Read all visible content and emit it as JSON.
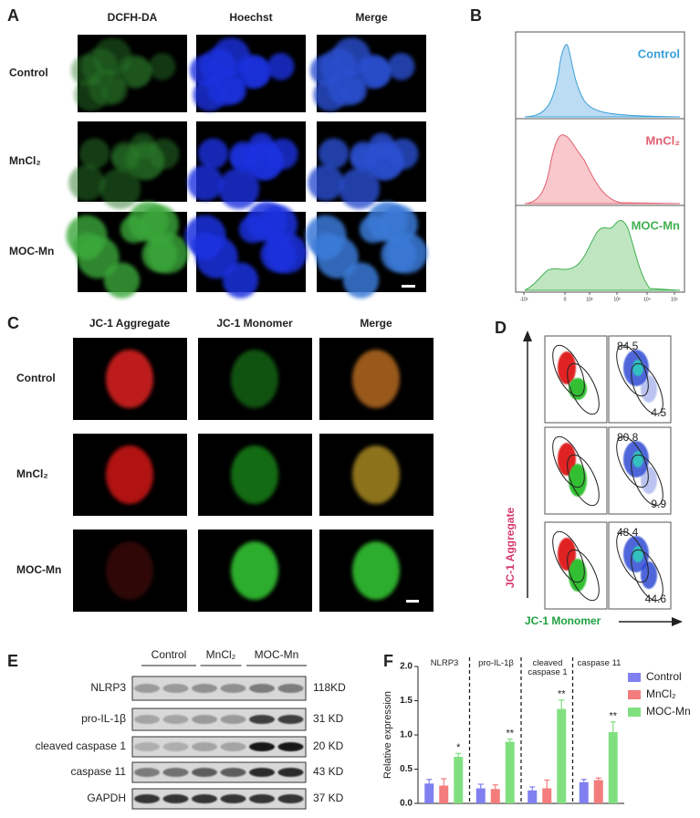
{
  "panel_a": {
    "letter": "A",
    "columns": [
      "DCFH-DA",
      "Hoechst",
      "Merge"
    ],
    "rows": [
      "Control",
      "MnCl₂",
      "MOC-Mn"
    ]
  },
  "panel_b": {
    "letter": "B",
    "labels": [
      "Control",
      "MnCl₂",
      "MOC-Mn"
    ],
    "axis_ticks": [
      "-10²",
      "0",
      "10²",
      "10³",
      "10⁴",
      "10⁵"
    ]
  },
  "panel_c": {
    "letter": "C",
    "columns": [
      "JC-1 Aggregate",
      "JC-1 Monomer",
      "Merge"
    ],
    "rows": [
      "Control",
      "MnCl₂",
      "MOC-Mn"
    ]
  },
  "panel_d": {
    "letter": "D",
    "y_label": "JC-1 Aggregate",
    "x_label": "JC-1 Monomer",
    "rows": [
      {
        "upper": 84.5,
        "lower": 4.5
      },
      {
        "upper": 80.8,
        "lower": 9.9
      },
      {
        "upper": 48.4,
        "lower": 44.6
      }
    ]
  },
  "panel_e": {
    "letter": "E",
    "columns": [
      "Control",
      "MnCl₂",
      "MOC-Mn"
    ],
    "rows": [
      {
        "protein": "NLRP3",
        "size": "118KD"
      },
      {
        "protein": "pro-IL-1β",
        "size": "31 KD"
      },
      {
        "protein": "cleaved caspase 1",
        "size": "20 KD"
      },
      {
        "protein": "caspase 11",
        "size": "43 KD"
      },
      {
        "protein": "GAPDH",
        "size": "37 KD"
      }
    ]
  },
  "chart_data": {
    "type": "bar",
    "letter": "F",
    "y_label": "Relative expression",
    "categories": [
      "NLRP3",
      "pro-IL-1β",
      "cleaved caspase 1",
      "caspase 11"
    ],
    "series": [
      {
        "name": "Control",
        "color": "#8080f0",
        "values": [
          0.29,
          0.22,
          0.19,
          0.31
        ],
        "errors": [
          0.06,
          0.06,
          0.05,
          0.04
        ]
      },
      {
        "name": "MnCl₂",
        "color": "#f47c7c",
        "values": [
          0.26,
          0.21,
          0.22,
          0.34
        ],
        "errors": [
          0.1,
          0.06,
          0.12,
          0.03
        ]
      },
      {
        "name": "MOC-Mn",
        "color": "#80e080",
        "values": [
          0.68,
          0.9,
          1.38,
          1.04
        ],
        "errors": [
          0.05,
          0.04,
          0.13,
          0.15
        ]
      }
    ],
    "significance": [
      "*",
      "**",
      "**",
      "**"
    ],
    "ylim": [
      0,
      2
    ],
    "yticks": [
      {
        "value": 0,
        "label": "0.0"
      },
      0.5,
      {
        "value": 1,
        "label": "1.0"
      },
      1.5,
      {
        "value": 2,
        "label": "2.0"
      }
    ]
  }
}
